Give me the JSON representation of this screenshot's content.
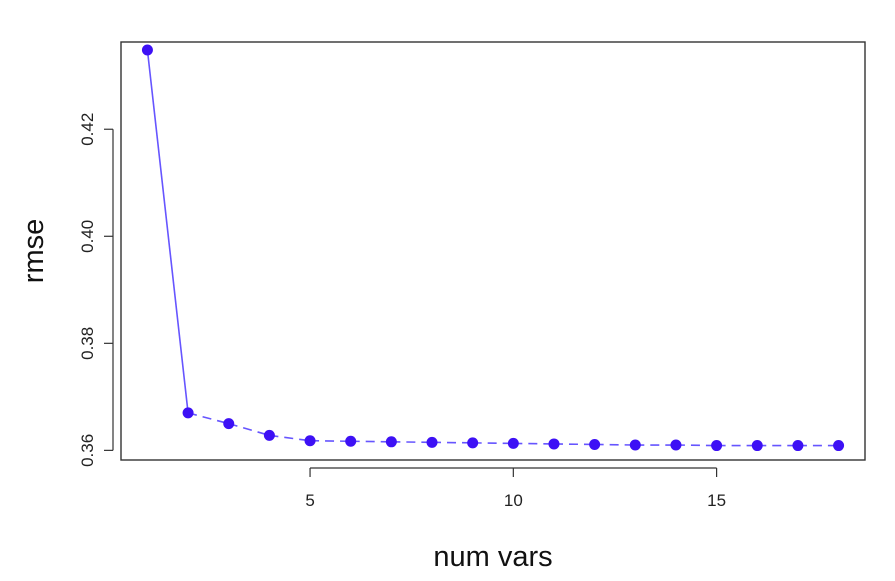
{
  "chart_data": {
    "type": "line",
    "title": "",
    "xlabel": "num vars",
    "ylabel": "rmse",
    "x": [
      1,
      2,
      3,
      4,
      5,
      6,
      7,
      8,
      9,
      10,
      11,
      12,
      13,
      14,
      15,
      16,
      17,
      18
    ],
    "series": [
      {
        "values": [
          0.4348,
          0.367,
          0.365,
          0.3628,
          0.3618,
          0.3617,
          0.3616,
          0.3615,
          0.3614,
          0.3613,
          0.3612,
          0.3611,
          0.361,
          0.361,
          0.3609,
          0.3609,
          0.3609,
          0.3609
        ]
      }
    ],
    "xlim": [
      0.35,
      18.65
    ],
    "ylim": [
      0.3582,
      0.4363
    ],
    "x_ticks": [
      5,
      10,
      15
    ],
    "x_tick_labels": [
      "5",
      "10",
      "15"
    ],
    "y_ticks": [
      0.36,
      0.38,
      0.4,
      0.42
    ],
    "y_tick_labels": [
      "0.36",
      "0.38",
      "0.40",
      "0.42"
    ],
    "grid": false,
    "legend": "none",
    "colors": {
      "line": "#6655ff",
      "point": "#3d10f5",
      "frame": "#333333"
    },
    "line_style": "solid for first segment, dashed thereafter"
  }
}
